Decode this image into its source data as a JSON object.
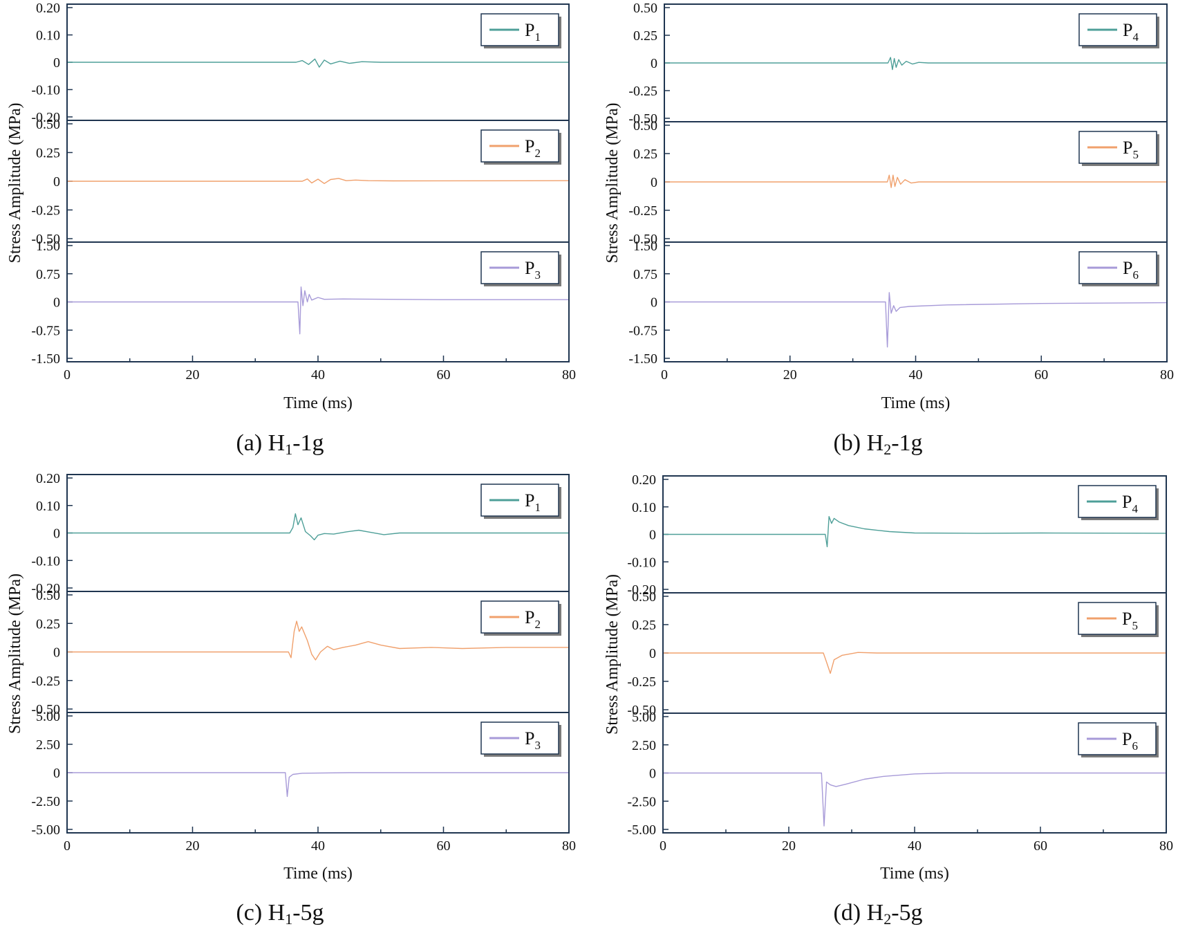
{
  "figure": {
    "x_axis_label": "Time (ms)",
    "y_axis_label": "Stress Amplitude (MPa)",
    "x_ticks": [
      0,
      20,
      40,
      60,
      80
    ],
    "xlim": [
      0,
      80
    ]
  },
  "colors": {
    "teal": "#4e9f98",
    "orange": "#f0a06c",
    "lavender": "#a79ad8",
    "axis": "#1f3550"
  },
  "captions": [
    {
      "prefix": "(a)  H",
      "sub": "1",
      "suffix": "-1g"
    },
    {
      "prefix": "(b)  H",
      "sub": "2",
      "suffix": "-1g"
    },
    {
      "prefix": "(c)  H",
      "sub": "1",
      "suffix": "-5g"
    },
    {
      "prefix": "(d)  H",
      "sub": "2",
      "suffix": "-5g"
    }
  ],
  "chart_data": [
    {
      "type": "line",
      "panel": "a",
      "title": "(a) H1-1g",
      "xlabel": "Time (ms)",
      "ylabel": "Stress Amplitude (MPa)",
      "series": [
        {
          "name": "P1",
          "legend_main": "P",
          "legend_sub": "1",
          "color": "#4e9f98",
          "ylim": [
            -0.2,
            0.2
          ],
          "y_ticks": [
            "0.20",
            "0.10",
            "0",
            "-0.10",
            "-0.20"
          ],
          "points": [
            [
              0,
              0
            ],
            [
              36.5,
              0
            ],
            [
              37.5,
              0.006
            ],
            [
              38.5,
              -0.008
            ],
            [
              39.5,
              0.012
            ],
            [
              40.2,
              -0.018
            ],
            [
              41,
              0.008
            ],
            [
              42,
              -0.006
            ],
            [
              43.5,
              0.004
            ],
            [
              45,
              -0.004
            ],
            [
              47,
              0.002
            ],
            [
              50,
              0
            ],
            [
              80,
              0
            ]
          ]
        },
        {
          "name": "P2",
          "legend_main": "P",
          "legend_sub": "2",
          "color": "#f0a06c",
          "ylim": [
            -0.5,
            0.5
          ],
          "y_ticks": [
            "0.50",
            "0.25",
            "0",
            "-0.25",
            "-0.50"
          ],
          "points": [
            [
              0,
              0
            ],
            [
              37.5,
              0
            ],
            [
              38.3,
              0.02
            ],
            [
              39,
              -0.015
            ],
            [
              40,
              0.018
            ],
            [
              41,
              -0.02
            ],
            [
              42,
              0.015
            ],
            [
              43.3,
              0.025
            ],
            [
              44.5,
              0.005
            ],
            [
              46,
              0.01
            ],
            [
              48,
              0.005
            ],
            [
              52,
              0.003
            ],
            [
              80,
              0.005
            ]
          ]
        },
        {
          "name": "P3",
          "legend_main": "P",
          "legend_sub": "3",
          "color": "#a79ad8",
          "ylim": [
            -1.5,
            1.5
          ],
          "y_ticks": [
            "1.50",
            "0.75",
            "0",
            "-0.75",
            "-1.50"
          ],
          "points": [
            [
              0,
              0
            ],
            [
              36.8,
              0
            ],
            [
              37.1,
              -0.85
            ],
            [
              37.3,
              0.4
            ],
            [
              37.6,
              -0.1
            ],
            [
              37.9,
              0.3
            ],
            [
              38.3,
              0
            ],
            [
              38.6,
              0.2
            ],
            [
              39,
              0.05
            ],
            [
              40,
              0.12
            ],
            [
              41,
              0.07
            ],
            [
              44,
              0.08
            ],
            [
              60,
              0.06
            ],
            [
              80,
              0.06
            ]
          ]
        }
      ]
    },
    {
      "type": "line",
      "panel": "b",
      "title": "(b) H2-1g",
      "xlabel": "Time (ms)",
      "ylabel": "Stress Amplitude (MPa)",
      "series": [
        {
          "name": "P4",
          "legend_main": "P",
          "legend_sub": "4",
          "color": "#4e9f98",
          "ylim": [
            -0.5,
            0.5
          ],
          "y_ticks": [
            "0.50",
            "0.25",
            "0",
            "-0.25",
            "-0.50"
          ],
          "points": [
            [
              0,
              0
            ],
            [
              35.6,
              0
            ],
            [
              36,
              0.05
            ],
            [
              36.3,
              -0.06
            ],
            [
              36.6,
              0.04
            ],
            [
              36.9,
              -0.04
            ],
            [
              37.3,
              0.03
            ],
            [
              37.8,
              -0.02
            ],
            [
              38.5,
              0.015
            ],
            [
              39.5,
              -0.01
            ],
            [
              40.5,
              0.005
            ],
            [
              42,
              0
            ],
            [
              80,
              0
            ]
          ]
        },
        {
          "name": "P5",
          "legend_main": "P",
          "legend_sub": "5",
          "color": "#f0a06c",
          "ylim": [
            -0.5,
            0.5
          ],
          "y_ticks": [
            "0.50",
            "0.25",
            "0",
            "-0.25",
            "-0.50"
          ],
          "points": [
            [
              0,
              0
            ],
            [
              35.5,
              0
            ],
            [
              35.8,
              0.06
            ],
            [
              36.1,
              -0.05
            ],
            [
              36.4,
              0.06
            ],
            [
              36.7,
              -0.04
            ],
            [
              37.1,
              0.04
            ],
            [
              37.6,
              -0.02
            ],
            [
              38.3,
              0.02
            ],
            [
              39.3,
              -0.01
            ],
            [
              40.5,
              0
            ],
            [
              80,
              0
            ]
          ]
        },
        {
          "name": "P6",
          "legend_main": "P",
          "legend_sub": "6",
          "color": "#a79ad8",
          "ylim": [
            -1.5,
            1.5
          ],
          "y_ticks": [
            "1.50",
            "0.75",
            "0",
            "-0.75",
            "-1.50"
          ],
          "points": [
            [
              0,
              0
            ],
            [
              35.2,
              0
            ],
            [
              35.5,
              -1.2
            ],
            [
              35.8,
              0.25
            ],
            [
              36.1,
              -0.3
            ],
            [
              36.5,
              -0.1
            ],
            [
              36.9,
              -0.25
            ],
            [
              37.5,
              -0.15
            ],
            [
              39,
              -0.12
            ],
            [
              45,
              -0.08
            ],
            [
              60,
              -0.04
            ],
            [
              80,
              -0.02
            ]
          ]
        }
      ]
    },
    {
      "type": "line",
      "panel": "c",
      "title": "(c) H1-5g",
      "xlabel": "Time (ms)",
      "ylabel": "Stress Amplitude (MPa)",
      "series": [
        {
          "name": "P1",
          "legend_main": "P",
          "legend_sub": "1",
          "color": "#4e9f98",
          "ylim": [
            -0.2,
            0.2
          ],
          "y_ticks": [
            "0.20",
            "0.10",
            "0",
            "-0.10",
            "-0.20"
          ],
          "points": [
            [
              0,
              0
            ],
            [
              35.5,
              0
            ],
            [
              36,
              0.02
            ],
            [
              36.4,
              0.07
            ],
            [
              36.8,
              0.03
            ],
            [
              37.3,
              0.055
            ],
            [
              38,
              0.005
            ],
            [
              38.8,
              -0.01
            ],
            [
              39.4,
              -0.025
            ],
            [
              40,
              -0.008
            ],
            [
              41,
              -0.002
            ],
            [
              42.5,
              -0.004
            ],
            [
              44.5,
              0.004
            ],
            [
              46.5,
              0.01
            ],
            [
              48,
              0.004
            ],
            [
              50.5,
              -0.006
            ],
            [
              53,
              0
            ],
            [
              80,
              0
            ]
          ]
        },
        {
          "name": "P2",
          "legend_main": "P",
          "legend_sub": "2",
          "color": "#f0a06c",
          "ylim": [
            -0.5,
            0.5
          ],
          "y_ticks": [
            "0.50",
            "0.25",
            "0",
            "-0.25",
            "-0.50"
          ],
          "points": [
            [
              0,
              0
            ],
            [
              35.3,
              0
            ],
            [
              35.7,
              -0.05
            ],
            [
              36.2,
              0.18
            ],
            [
              36.6,
              0.27
            ],
            [
              37,
              0.18
            ],
            [
              37.4,
              0.22
            ],
            [
              38.3,
              0.1
            ],
            [
              39,
              -0.02
            ],
            [
              39.6,
              -0.07
            ],
            [
              40.4,
              0.0
            ],
            [
              41.5,
              0.05
            ],
            [
              42.5,
              0.02
            ],
            [
              44,
              0.04
            ],
            [
              46,
              0.06
            ],
            [
              48,
              0.09
            ],
            [
              50,
              0.06
            ],
            [
              53,
              0.03
            ],
            [
              58,
              0.04
            ],
            [
              63,
              0.03
            ],
            [
              70,
              0.04
            ],
            [
              80,
              0.04
            ]
          ]
        },
        {
          "name": "P3",
          "legend_main": "P",
          "legend_sub": "3",
          "color": "#a79ad8",
          "ylim": [
            -5,
            5
          ],
          "y_ticks": [
            "5.00",
            "2.50",
            "0",
            "-2.50",
            "-5.00"
          ],
          "points": [
            [
              0,
              0
            ],
            [
              34.8,
              0
            ],
            [
              35.1,
              -2.1
            ],
            [
              35.4,
              -0.4
            ],
            [
              36,
              -0.15
            ],
            [
              37.5,
              -0.05
            ],
            [
              45,
              0
            ],
            [
              80,
              0
            ]
          ]
        }
      ]
    },
    {
      "type": "line",
      "panel": "d",
      "title": "(d) H2-5g",
      "xlabel": "Time (ms)",
      "ylabel": "Stress Amplitude (MPa)",
      "series": [
        {
          "name": "P4",
          "legend_main": "P",
          "legend_sub": "4",
          "color": "#4e9f98",
          "ylim": [
            -0.2,
            0.2
          ],
          "y_ticks": [
            "0.20",
            "0.10",
            "0",
            "-0.10",
            "-0.20"
          ],
          "points": [
            [
              0,
              0
            ],
            [
              25.8,
              0
            ],
            [
              26.1,
              -0.045
            ],
            [
              26.4,
              0.065
            ],
            [
              26.8,
              0.04
            ],
            [
              27.2,
              0.058
            ],
            [
              28,
              0.045
            ],
            [
              29.5,
              0.032
            ],
            [
              32,
              0.02
            ],
            [
              36,
              0.01
            ],
            [
              40,
              0.005
            ],
            [
              50,
              0.004
            ],
            [
              60,
              0.005
            ],
            [
              80,
              0.004
            ]
          ]
        },
        {
          "name": "P5",
          "legend_main": "P",
          "legend_sub": "5",
          "color": "#f0a06c",
          "ylim": [
            -0.5,
            0.5
          ],
          "y_ticks": [
            "0.50",
            "0.25",
            "0",
            "-0.25",
            "-0.50"
          ],
          "points": [
            [
              0,
              0
            ],
            [
              25.5,
              0
            ],
            [
              26,
              -0.08
            ],
            [
              26.6,
              -0.18
            ],
            [
              27.2,
              -0.06
            ],
            [
              28.5,
              -0.02
            ],
            [
              31,
              0.005
            ],
            [
              34,
              0
            ],
            [
              80,
              0
            ]
          ]
        },
        {
          "name": "P6",
          "legend_main": "P",
          "legend_sub": "6",
          "color": "#a79ad8",
          "ylim": [
            -5,
            5
          ],
          "y_ticks": [
            "5.00",
            "2.50",
            "0",
            "-2.50",
            "-5.00"
          ],
          "points": [
            [
              0,
              0
            ],
            [
              25.2,
              0
            ],
            [
              25.6,
              -4.7
            ],
            [
              26,
              -0.8
            ],
            [
              26.6,
              -1.05
            ],
            [
              27.5,
              -1.2
            ],
            [
              29,
              -1.0
            ],
            [
              32,
              -0.55
            ],
            [
              35,
              -0.3
            ],
            [
              40,
              -0.08
            ],
            [
              45,
              0
            ],
            [
              80,
              0
            ]
          ]
        }
      ]
    }
  ]
}
